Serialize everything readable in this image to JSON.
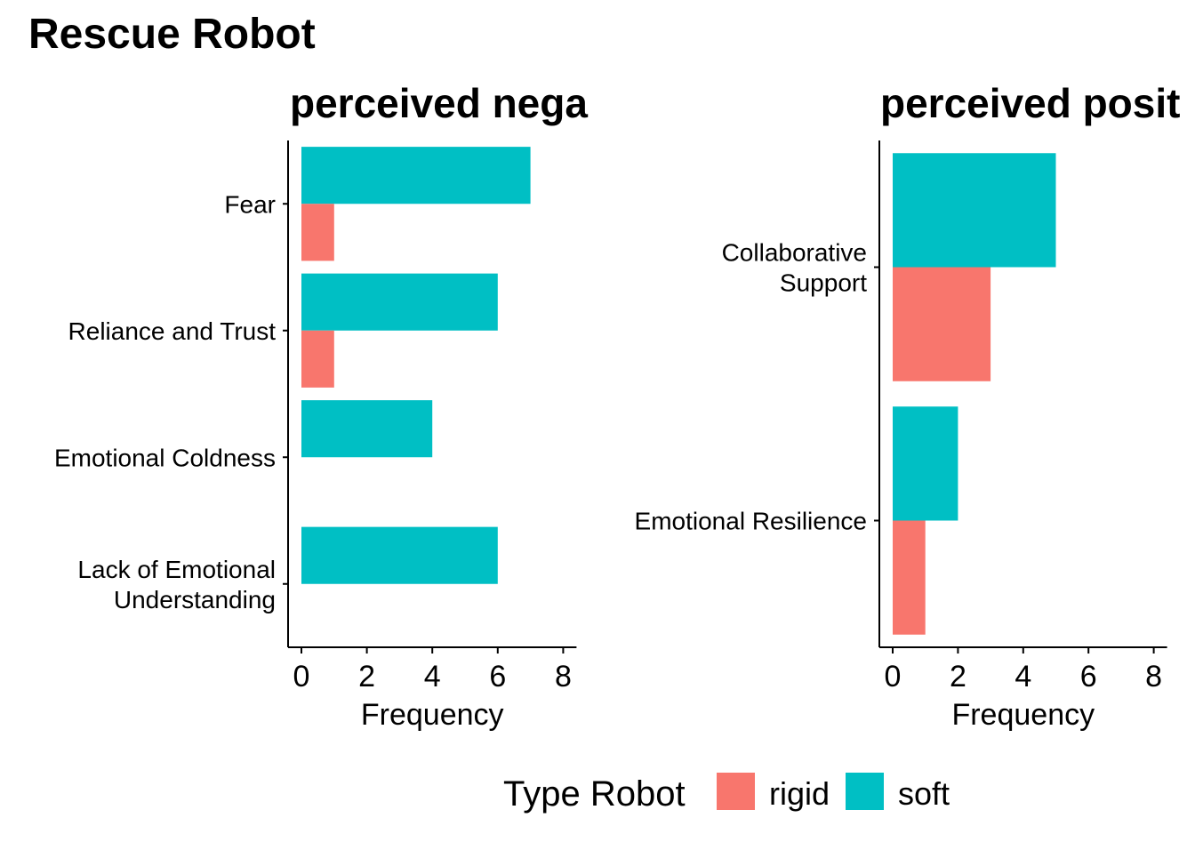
{
  "title": "Rescue Robot",
  "chart_data": [
    {
      "type": "bar",
      "orientation": "horizontal",
      "title": "perceived nega",
      "xlabel": "Frequency",
      "ylabel": "",
      "xlim": [
        0,
        8
      ],
      "xticks": [
        0,
        2,
        4,
        6,
        8
      ],
      "categories": [
        [
          "Fear"
        ],
        [
          "Reliance and Trust"
        ],
        [
          "Emotional Coldness"
        ],
        [
          "Lack of Emotional",
          "Understanding"
        ]
      ],
      "series": [
        {
          "name": "soft",
          "values": [
            7,
            6,
            4,
            6
          ]
        },
        {
          "name": "rigid",
          "values": [
            1,
            1,
            0,
            0
          ]
        }
      ],
      "grid": false
    },
    {
      "type": "bar",
      "orientation": "horizontal",
      "title": "perceived posit",
      "xlabel": "Frequency",
      "ylabel": "",
      "xlim": [
        0,
        8
      ],
      "xticks": [
        0,
        2,
        4,
        6,
        8
      ],
      "categories": [
        [
          "Collaborative",
          "Support"
        ],
        [
          "Emotional Resilience"
        ]
      ],
      "series": [
        {
          "name": "soft",
          "values": [
            5,
            2
          ]
        },
        {
          "name": "rigid",
          "values": [
            3,
            1
          ]
        }
      ],
      "grid": false
    }
  ],
  "legend": {
    "title": "Type Robot",
    "placement": "bottom",
    "items": [
      {
        "label": "rigid",
        "color": "#F8766D"
      },
      {
        "label": "soft",
        "color": "#00BFC4"
      }
    ]
  },
  "colors": {
    "soft": "#00BFC4",
    "rigid": "#F8766D"
  }
}
